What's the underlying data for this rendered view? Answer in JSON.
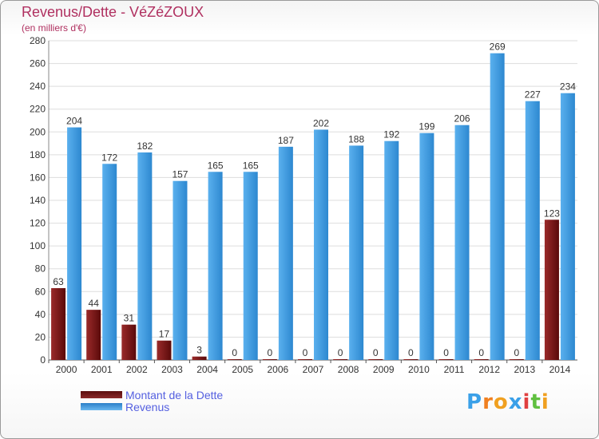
{
  "chart_data": {
    "type": "bar",
    "title": "Revenus/Dette - VéZéZOUX",
    "subtitle": "(en milliers d'€)",
    "categories": [
      "2000",
      "2001",
      "2002",
      "2003",
      "2004",
      "2005",
      "2006",
      "2007",
      "2008",
      "2009",
      "2010",
      "2011",
      "2012",
      "2013",
      "2014"
    ],
    "series": [
      {
        "name": "Montant de la Dette",
        "color": "#7a1a1a",
        "values": [
          63,
          44,
          31,
          17,
          3,
          0,
          0,
          0,
          0,
          0,
          0,
          0,
          0,
          0,
          123
        ]
      },
      {
        "name": "Revenus",
        "color": "#4aa3e6",
        "values": [
          204,
          172,
          182,
          157,
          165,
          165,
          187,
          202,
          188,
          192,
          199,
          206,
          269,
          227,
          234
        ]
      }
    ],
    "ylim": [
      0,
      280
    ],
    "yticks": [
      0,
      20,
      40,
      60,
      80,
      100,
      120,
      140,
      160,
      180,
      200,
      220,
      240,
      260,
      280
    ],
    "grid": true,
    "legend_position": "bottom-left"
  },
  "legend": {
    "debt_label": "Montant de la Dette",
    "revenue_label": "Revenus"
  },
  "logo": {
    "letters": [
      "P",
      "r",
      "o",
      "x",
      "i",
      "t",
      "i"
    ],
    "colors": [
      "#3aa0e8",
      "#f08020",
      "#f0a020",
      "#3aa0e8",
      "#e04040",
      "#60c040",
      "#f0a020"
    ]
  }
}
